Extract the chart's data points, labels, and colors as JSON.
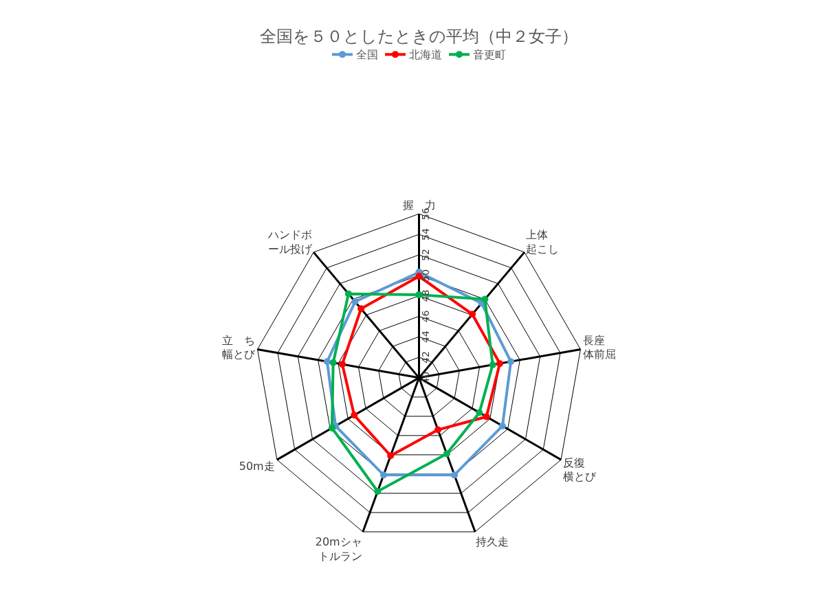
{
  "chart_data": {
    "type": "radar",
    "title": "全国を５０としたときの平均（中２女子）",
    "categories": [
      "握　力",
      "上体起こし",
      "長座体前屈",
      "反復横とび",
      "持久走",
      "20mシャトルラン",
      "50m走",
      "立　ち幅とび",
      "ハンドボール投げ"
    ],
    "series": [
      {
        "name": "全国",
        "color": "#5b9bd5",
        "values": [
          50.3,
          49.5,
          49.1,
          49.4,
          50.1,
          50.1,
          49.4,
          49.1,
          49.7
        ]
      },
      {
        "name": "北海道",
        "color": "#ff0000",
        "values": [
          49.9,
          48.1,
          48.0,
          47.6,
          45.4,
          48.1,
          47.3,
          47.6,
          48.8
        ]
      },
      {
        "name": "音更町",
        "color": "#00b050",
        "values": [
          48.1,
          50.0,
          47.3,
          46.8,
          47.9,
          51.8,
          49.8,
          48.5,
          50.7
        ]
      }
    ],
    "ylim": [
      40,
      56
    ],
    "yticks": [
      40,
      42,
      44,
      46,
      48,
      50,
      52,
      54,
      56
    ],
    "grid": true,
    "legend": "top",
    "marker": "circle",
    "line_style": "solid"
  }
}
